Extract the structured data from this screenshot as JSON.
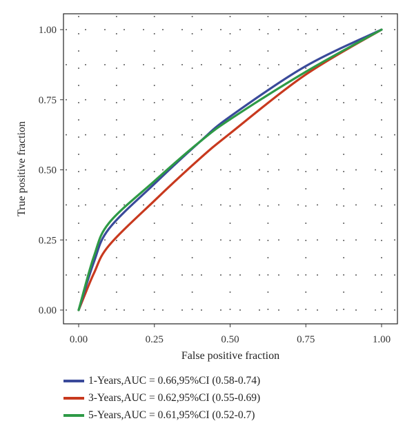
{
  "chart_data": {
    "type": "line",
    "xlabel": "False positive fraction",
    "ylabel": "True positive fraction",
    "xlim": [
      0,
      1
    ],
    "ylim": [
      0,
      1
    ],
    "x_ticks": [
      "0.00",
      "0.25",
      "0.50",
      "0.75",
      "1.00"
    ],
    "y_ticks": [
      "0.00",
      "0.25",
      "0.50",
      "0.75",
      "1.00"
    ],
    "grid": "dotted",
    "legend_position": "bottom-left",
    "series": [
      {
        "name": "1-Years,AUC = 0.66,95%CI (0.58-0.74)",
        "color": "#3a4a9a",
        "points": [
          [
            0,
            0
          ],
          [
            0.05,
            0.17
          ],
          [
            0.1,
            0.29
          ],
          [
            0.25,
            0.45
          ],
          [
            0.4,
            0.6
          ],
          [
            0.5,
            0.69
          ],
          [
            0.75,
            0.87
          ],
          [
            1.0,
            1.0
          ]
        ]
      },
      {
        "name": "3-Years,AUC = 0.62,95%CI (0.55-0.69)",
        "color": "#c8391e",
        "points": [
          [
            0,
            0
          ],
          [
            0.05,
            0.13
          ],
          [
            0.1,
            0.23
          ],
          [
            0.25,
            0.39
          ],
          [
            0.4,
            0.54
          ],
          [
            0.5,
            0.63
          ],
          [
            0.75,
            0.84
          ],
          [
            1.0,
            1.0
          ]
        ]
      },
      {
        "name": "5-Years,AUC = 0.61,95%CI (0.52-0.7)",
        "color": "#2e9a46",
        "points": [
          [
            0,
            0
          ],
          [
            0.05,
            0.19
          ],
          [
            0.1,
            0.31
          ],
          [
            0.25,
            0.46
          ],
          [
            0.4,
            0.6
          ],
          [
            0.5,
            0.68
          ],
          [
            0.75,
            0.85
          ],
          [
            1.0,
            1.0
          ]
        ]
      }
    ]
  }
}
